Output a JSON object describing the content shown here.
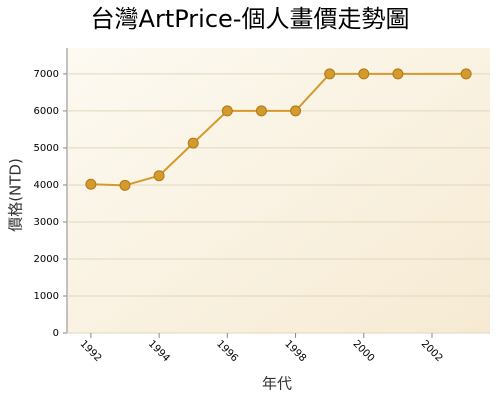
{
  "chart_data": {
    "type": "line",
    "title": "台灣ArtPrice-個人畫價走勢圖",
    "x_label": "年代",
    "y_label": "價格(NTD)",
    "x": [
      1992,
      1993,
      1994,
      1995,
      1996,
      1997,
      1998,
      1999,
      2000,
      2001,
      2003
    ],
    "series": [
      {
        "name": "價格",
        "color": "#d39a2e",
        "values": [
          4020,
          3990,
          4250,
          5130,
          6000,
          6000,
          6000,
          7000,
          7000,
          7000,
          7000
        ]
      }
    ],
    "xlim": [
      1991.3,
      2003.7
    ],
    "xticks": [
      1992,
      1994,
      1996,
      1998,
      2000,
      2002
    ],
    "ylim": [
      0,
      7700
    ],
    "yticks": [
      0,
      1000,
      2000,
      3000,
      4000,
      5000,
      6000,
      7000
    ],
    "grid": true
  }
}
